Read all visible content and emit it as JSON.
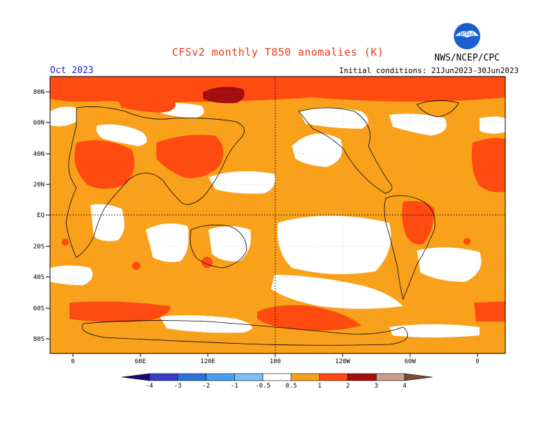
{
  "header": {
    "title": "CFSv2 monthly T850 anomalies (K)",
    "org": "NWS/NCEP/CPC",
    "month": "Oct 2023",
    "initial_conditions": "Initial conditions: 21Jun2023-30Jun2023"
  },
  "logo": {
    "text": "NOAA"
  },
  "axes": {
    "lat_labels": [
      "80N",
      "60N",
      "40N",
      "20N",
      "EQ",
      "20S",
      "40S",
      "60S",
      "80S"
    ],
    "lon_labels": [
      "0",
      "60E",
      "120E",
      "180",
      "120W",
      "60W",
      "0"
    ]
  },
  "colorbar": {
    "labels": [
      "-4",
      "-3",
      "-2",
      "-1",
      "-0.5",
      "0.5",
      "1",
      "2",
      "3",
      "4"
    ],
    "colors": [
      "#1a0a78",
      "#3a3ac8",
      "#2a74d8",
      "#4a9ef0",
      "#7cc0f8",
      "#ffffff",
      "#f9a11b",
      "#ff4a10",
      "#a50e0e",
      "#c9a08e",
      "#7a4a3a"
    ]
  }
}
